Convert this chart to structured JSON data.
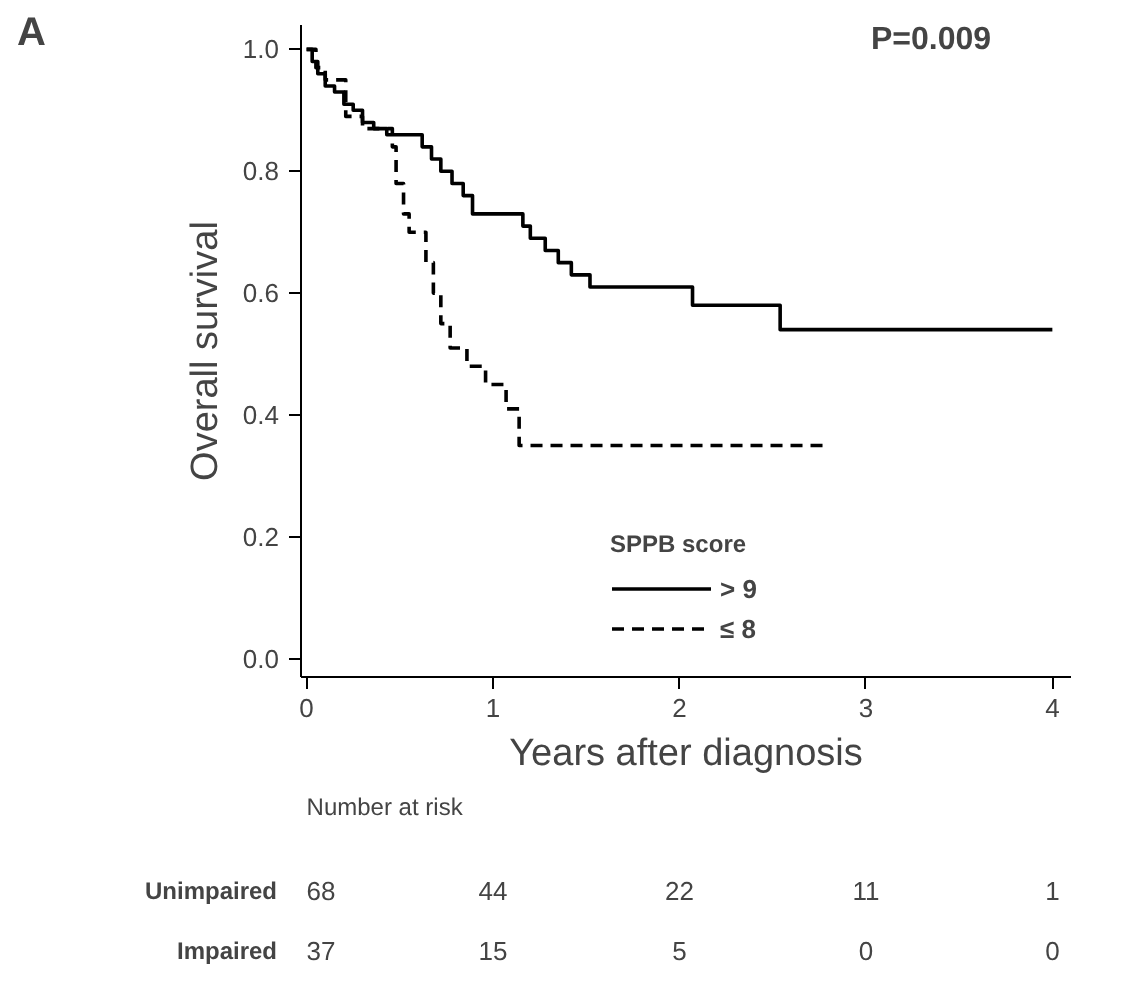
{
  "chart_data": {
    "type": "step",
    "xlabel": "Years after diagnosis",
    "ylabel": "Overall survival",
    "legend_title": "SPPB score",
    "xlim": [
      -0.03,
      4.1
    ],
    "ylim": [
      -0.03,
      1.04
    ],
    "xticks": [
      0,
      1,
      2,
      3,
      4
    ],
    "yticks": [
      {
        "value": 0,
        "label": "0.0"
      },
      0.2,
      0.4,
      0.6,
      0.8,
      {
        "value": 1,
        "label": "1.0"
      }
    ],
    "grid": false,
    "legend": "bottom",
    "marker": "none",
    "series": [
      {
        "name": "> 9",
        "color": "#000000",
        "line_style": "solid",
        "x": [
          0,
          0.03,
          0.06,
          0.1,
          0.15,
          0.2,
          0.25,
          0.3,
          0.36,
          0.43,
          0.62,
          0.67,
          0.72,
          0.78,
          0.84,
          0.89,
          1.16,
          1.2,
          1.28,
          1.35,
          1.42,
          1.52,
          2.07,
          2.54,
          4.0
        ],
        "values": [
          1.0,
          0.98,
          0.96,
          0.94,
          0.93,
          0.91,
          0.9,
          0.88,
          0.87,
          0.86,
          0.84,
          0.82,
          0.8,
          0.78,
          0.76,
          0.73,
          0.71,
          0.69,
          0.67,
          0.65,
          0.63,
          0.61,
          0.58,
          0.54,
          0.54
        ]
      },
      {
        "name": "≤ 8",
        "color": "#000000",
        "line_style": "dashed",
        "x": [
          0,
          0.05,
          0.1,
          0.21,
          0.3,
          0.46,
          0.48,
          0.52,
          0.55,
          0.64,
          0.68,
          0.72,
          0.77,
          0.86,
          0.96,
          1.07,
          1.14,
          2.79
        ],
        "values": [
          1.0,
          0.97,
          0.95,
          0.89,
          0.87,
          0.84,
          0.78,
          0.73,
          0.7,
          0.65,
          0.6,
          0.55,
          0.51,
          0.48,
          0.45,
          0.41,
          0.35,
          0.35
        ]
      }
    ],
    "annotations": [
      "A",
      "P=0.009",
      "Number at risk",
      "Unimpaired",
      "68",
      "44",
      "22",
      "11",
      "1",
      "Impaired",
      "37",
      "15",
      "5",
      "0",
      "0"
    ]
  }
}
